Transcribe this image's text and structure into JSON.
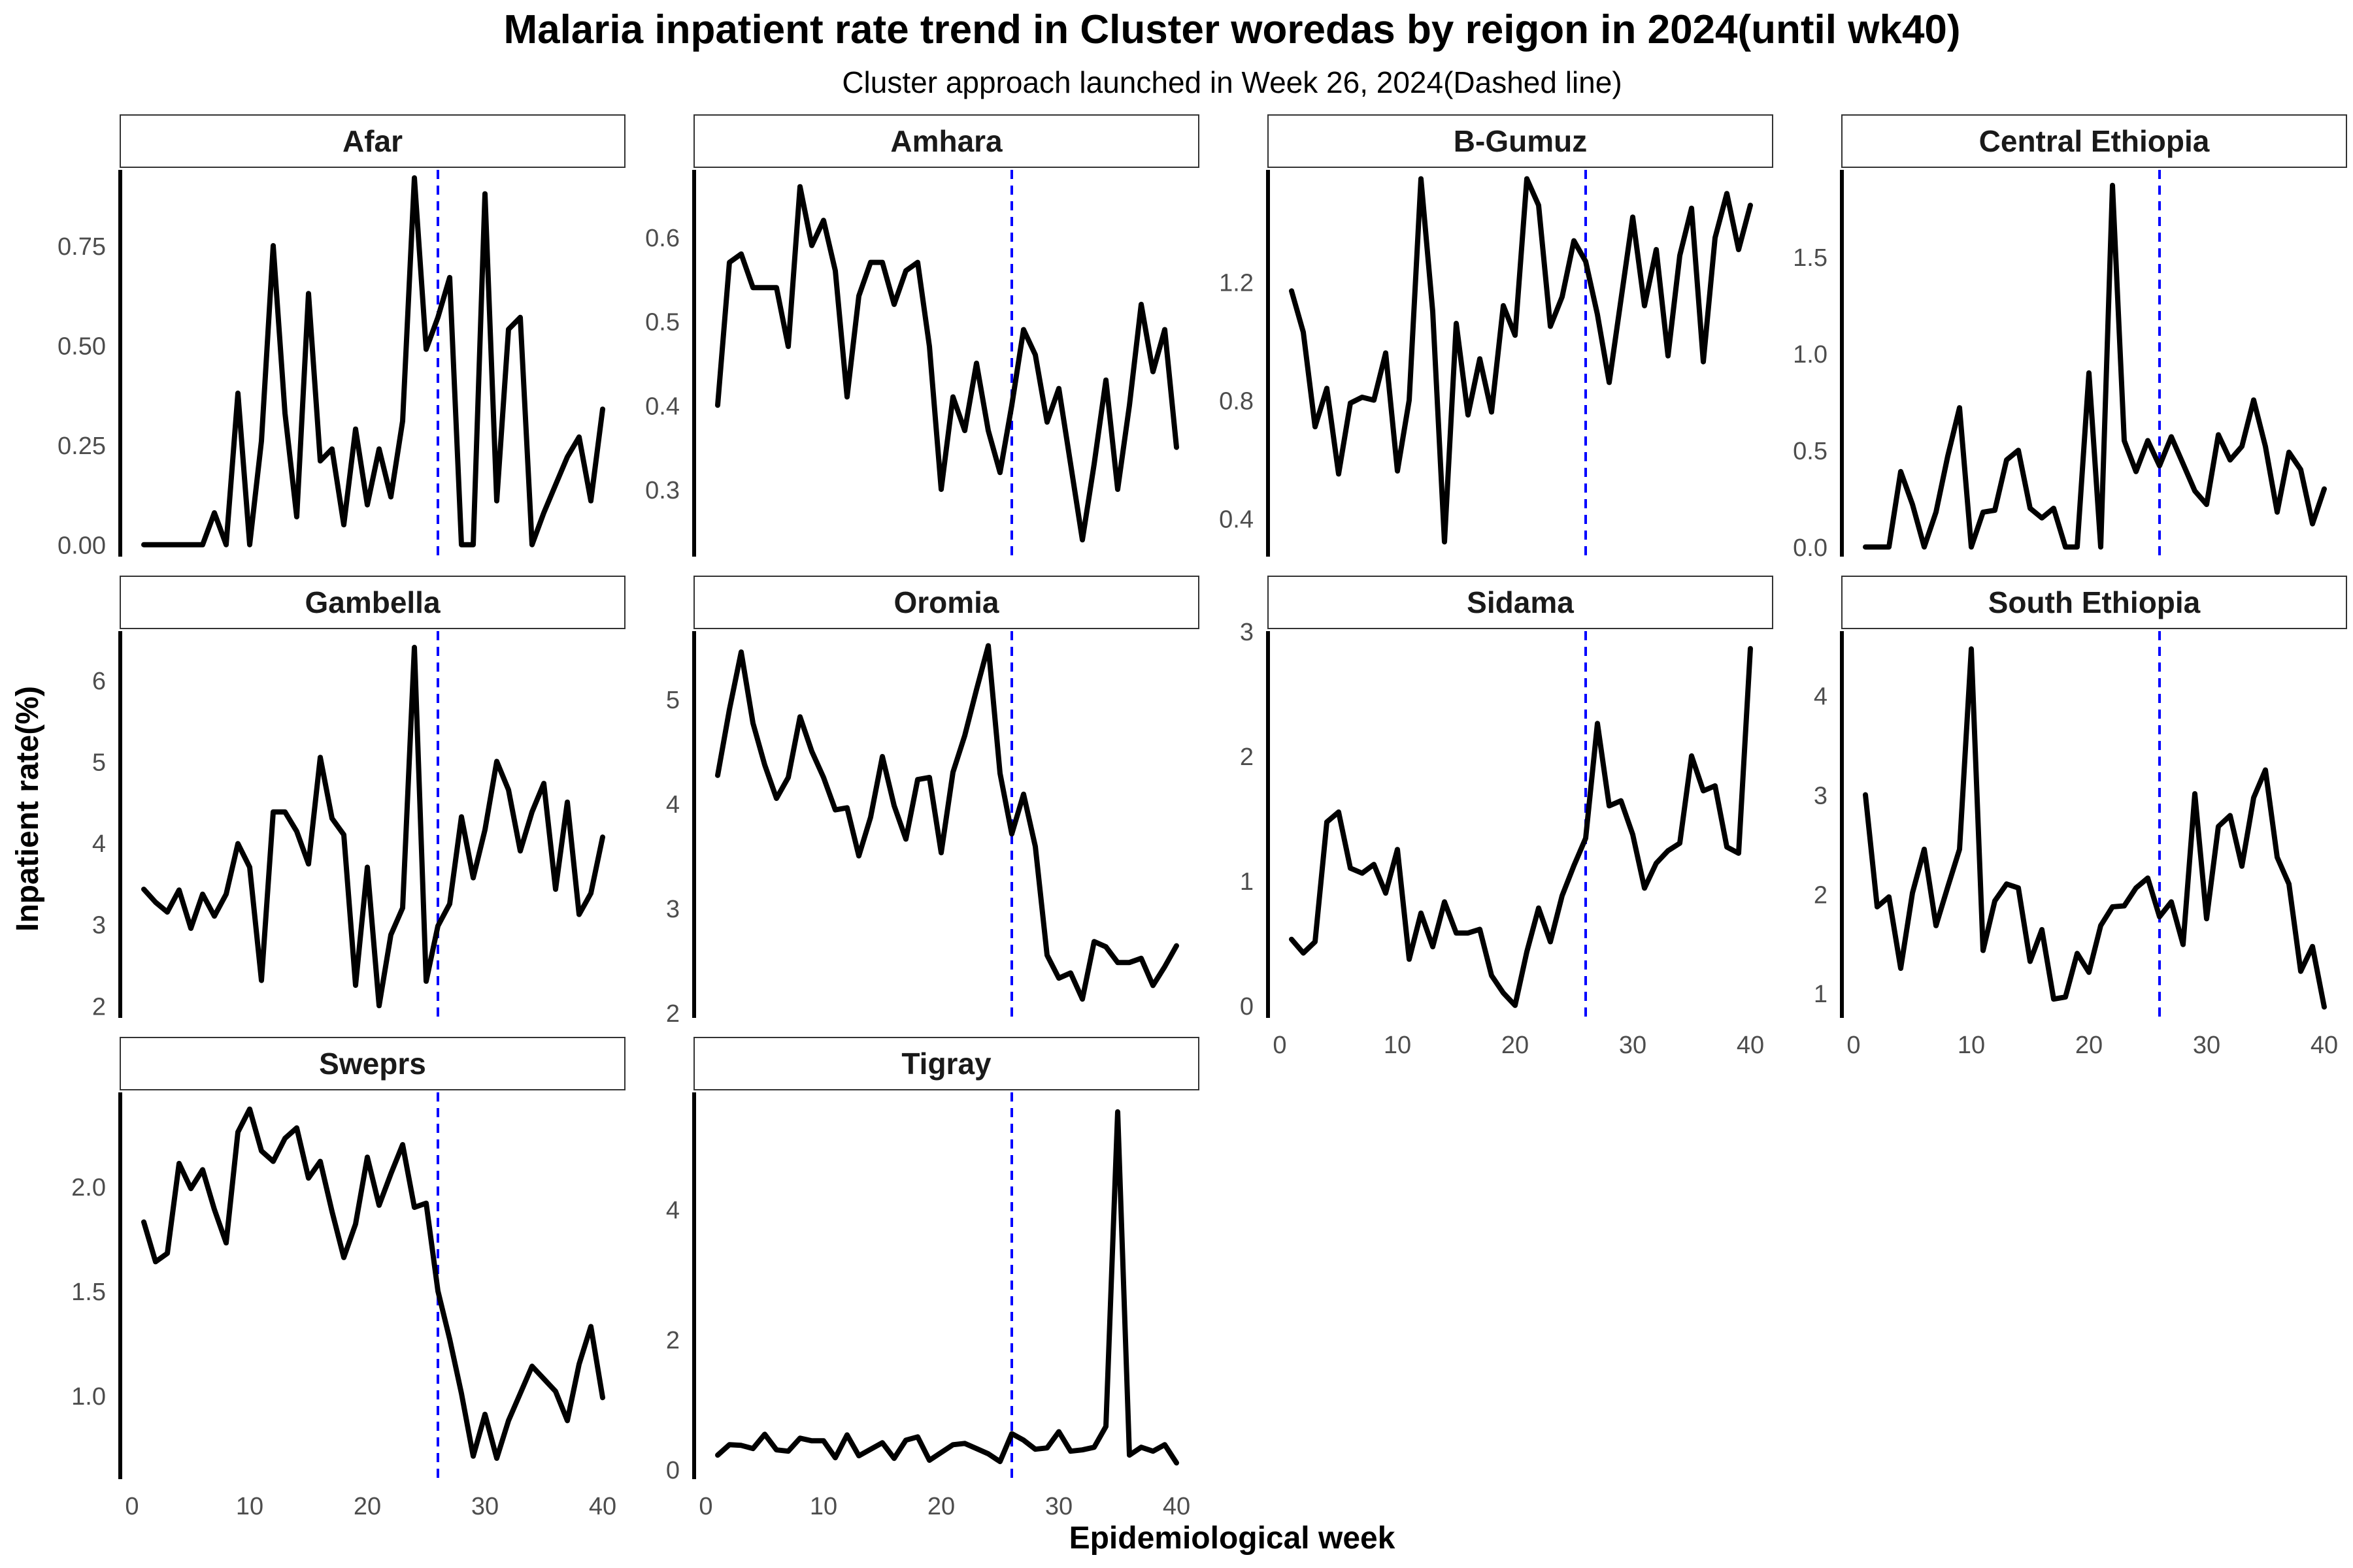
{
  "title": "Malaria inpatient rate trend in Cluster woredas by reigon in 2024(until wk40)",
  "subtitle": "Cluster approach launched in Week 26, 2024(Dashed line)",
  "xlabel": "Epidemiological week",
  "ylabel": "Inpatient rate(%)",
  "colors": {
    "line": "#000000",
    "marker_line": "#0000ff",
    "strip_fill": "#ffffff",
    "strip_border": "#333333",
    "tick_text": "#4d4d4d"
  },
  "chart_data": {
    "type": "line",
    "facet": "small-multiples",
    "reference_line": {
      "x": 26,
      "style": "dashed",
      "color": "#0000ff"
    },
    "xlim": [
      1,
      40
    ],
    "x_ticks": [
      0,
      10,
      20,
      30,
      40
    ],
    "panels": [
      {
        "name": "Afar",
        "ylim": [
          -0.03,
          0.94
        ],
        "y_ticks": [
          0.0,
          0.25,
          0.5,
          0.75
        ],
        "y_tick_labels": [
          "0.00",
          "0.25",
          "0.50",
          "0.75"
        ],
        "x": [
          1,
          2,
          3,
          4,
          5,
          6,
          7,
          8,
          9,
          10,
          11,
          12,
          13,
          14,
          15,
          16,
          17,
          18,
          19,
          20,
          21,
          22,
          23,
          24,
          25,
          26,
          27,
          28,
          29,
          30,
          31,
          32,
          33,
          34,
          35,
          36,
          37,
          38,
          39,
          40
        ],
        "y": [
          0.0,
          0.0,
          0.0,
          0.0,
          0.0,
          0.0,
          0.08,
          0.0,
          0.38,
          0.0,
          0.26,
          0.75,
          0.33,
          0.07,
          0.63,
          0.21,
          0.24,
          0.05,
          0.29,
          0.1,
          0.24,
          0.12,
          0.31,
          0.92,
          0.49,
          0.57,
          0.67,
          0.0,
          0.0,
          0.88,
          0.11,
          0.54,
          0.57,
          0.0,
          0.08,
          0.15,
          0.22,
          0.27,
          0.11,
          0.34
        ]
      },
      {
        "name": "Amhara",
        "ylim": [
          0.22,
          0.68
        ],
        "y_ticks": [
          0.3,
          0.4,
          0.5,
          0.6
        ],
        "y_tick_labels": [
          "0.3",
          "0.4",
          "0.5",
          "0.6"
        ],
        "x": [
          1,
          2,
          3,
          4,
          5,
          6,
          7,
          8,
          9,
          10,
          11,
          12,
          13,
          14,
          15,
          16,
          17,
          18,
          19,
          20,
          21,
          22,
          23,
          24,
          25,
          26,
          27,
          28,
          29,
          30,
          31,
          32,
          33,
          34,
          35,
          36,
          37,
          38,
          39,
          40
        ],
        "y": [
          0.4,
          0.57,
          0.58,
          0.54,
          0.54,
          0.54,
          0.47,
          0.66,
          0.59,
          0.62,
          0.56,
          0.41,
          0.53,
          0.57,
          0.57,
          0.52,
          0.56,
          0.57,
          0.47,
          0.3,
          0.41,
          0.37,
          0.45,
          0.37,
          0.32,
          0.4,
          0.49,
          0.46,
          0.38,
          0.42,
          0.33,
          0.24,
          0.33,
          0.43,
          0.3,
          0.4,
          0.52,
          0.44,
          0.49,
          0.35
        ]
      },
      {
        "name": "B-Gumuz",
        "ylim": [
          0.27,
          1.58
        ],
        "y_ticks": [
          0.4,
          0.8,
          1.2
        ],
        "y_tick_labels": [
          "0.4",
          "0.8",
          "1.2"
        ],
        "x": [
          1,
          2,
          3,
          4,
          5,
          6,
          7,
          8,
          9,
          10,
          11,
          12,
          13,
          14,
          15,
          16,
          17,
          18,
          19,
          20,
          21,
          22,
          23,
          24,
          25,
          26,
          27,
          28,
          29,
          30,
          31,
          32,
          33,
          34,
          35,
          36,
          37,
          38,
          39,
          40
        ],
        "y": [
          1.17,
          1.03,
          0.71,
          0.84,
          0.55,
          0.79,
          0.81,
          0.8,
          0.96,
          0.56,
          0.8,
          1.55,
          1.1,
          0.32,
          1.06,
          0.75,
          0.94,
          0.76,
          1.12,
          1.02,
          1.55,
          1.46,
          1.05,
          1.15,
          1.34,
          1.27,
          1.09,
          0.86,
          1.14,
          1.42,
          1.12,
          1.31,
          0.95,
          1.29,
          1.45,
          0.93,
          1.35,
          1.5,
          1.31,
          1.46
        ]
      },
      {
        "name": "Central Ethiopia",
        "ylim": [
          -0.05,
          1.95
        ],
        "y_ticks": [
          0.0,
          0.5,
          1.0,
          1.5
        ],
        "y_tick_labels": [
          "0.0",
          "0.5",
          "1.0",
          "1.5"
        ],
        "x": [
          1,
          2,
          3,
          4,
          5,
          6,
          7,
          8,
          9,
          10,
          11,
          12,
          13,
          14,
          15,
          16,
          17,
          18,
          19,
          20,
          21,
          22,
          23,
          24,
          25,
          26,
          27,
          28,
          29,
          30,
          31,
          32,
          33,
          34,
          35,
          36,
          37,
          38,
          39,
          40
        ],
        "y": [
          0.0,
          0.0,
          0.0,
          0.39,
          0.22,
          0.0,
          0.18,
          0.47,
          0.72,
          0.0,
          0.18,
          0.19,
          0.45,
          0.5,
          0.2,
          0.15,
          0.2,
          0.0,
          0.0,
          0.9,
          0.0,
          1.87,
          0.55,
          0.39,
          0.55,
          0.42,
          0.57,
          0.43,
          0.29,
          0.22,
          0.58,
          0.45,
          0.52,
          0.76,
          0.52,
          0.18,
          0.49,
          0.4,
          0.12,
          0.3
        ]
      },
      {
        "name": "Gambella",
        "ylim": [
          1.85,
          6.6
        ],
        "y_ticks": [
          2,
          3,
          4,
          5,
          6
        ],
        "y_tick_labels": [
          "2",
          "3",
          "4",
          "5",
          "6"
        ],
        "x": [
          1,
          2,
          3,
          4,
          5,
          6,
          7,
          8,
          9,
          10,
          11,
          12,
          13,
          14,
          15,
          16,
          17,
          18,
          19,
          20,
          21,
          22,
          23,
          24,
          25,
          26,
          27,
          28,
          29,
          30,
          31,
          32,
          33,
          34,
          35,
          36,
          37,
          38,
          39,
          40
        ],
        "y": [
          3.43,
          3.27,
          3.15,
          3.42,
          2.95,
          3.37,
          3.1,
          3.37,
          3.99,
          3.7,
          2.31,
          4.38,
          4.38,
          4.14,
          3.74,
          5.05,
          4.3,
          4.1,
          2.25,
          3.7,
          2.0,
          2.87,
          3.2,
          6.4,
          2.3,
          2.98,
          3.25,
          4.32,
          3.57,
          4.16,
          5.0,
          4.65,
          3.9,
          4.38,
          4.73,
          3.43,
          4.5,
          3.12,
          3.38,
          4.07
        ]
      },
      {
        "name": "Oromia",
        "ylim": [
          1.95,
          5.65
        ],
        "y_ticks": [
          2,
          3,
          4,
          5
        ],
        "y_tick_labels": [
          "2",
          "3",
          "4",
          "5"
        ],
        "x": [
          1,
          2,
          3,
          4,
          5,
          6,
          7,
          8,
          9,
          10,
          11,
          12,
          13,
          14,
          15,
          16,
          17,
          18,
          19,
          20,
          21,
          22,
          23,
          24,
          25,
          26,
          27,
          28,
          29,
          30,
          31,
          32,
          33,
          34,
          35,
          36,
          37,
          38,
          39,
          40
        ],
        "y": [
          4.27,
          4.9,
          5.45,
          4.77,
          4.37,
          4.05,
          4.25,
          4.83,
          4.5,
          4.25,
          3.94,
          3.96,
          3.5,
          3.87,
          4.45,
          3.98,
          3.66,
          4.23,
          4.25,
          3.53,
          4.3,
          4.65,
          5.09,
          5.51,
          4.29,
          3.71,
          4.09,
          3.59,
          2.55,
          2.33,
          2.38,
          2.13,
          2.68,
          2.63,
          2.48,
          2.48,
          2.52,
          2.26,
          2.44,
          2.64
        ]
      },
      {
        "name": "Sidama",
        "ylim": [
          -0.1,
          3.0
        ],
        "y_ticks": [
          0,
          1,
          2,
          3
        ],
        "y_tick_labels": [
          "0",
          "1",
          "2",
          "3"
        ],
        "x": [
          1,
          2,
          3,
          4,
          5,
          6,
          7,
          8,
          9,
          10,
          11,
          12,
          13,
          14,
          15,
          16,
          17,
          18,
          19,
          20,
          21,
          22,
          23,
          24,
          25,
          26,
          27,
          28,
          29,
          30,
          31,
          32,
          33,
          34,
          35,
          36,
          37,
          38,
          39,
          40
        ],
        "y": [
          0.53,
          0.42,
          0.51,
          1.47,
          1.55,
          1.1,
          1.06,
          1.13,
          0.9,
          1.25,
          0.37,
          0.74,
          0.47,
          0.83,
          0.58,
          0.58,
          0.61,
          0.24,
          0.1,
          0.0,
          0.43,
          0.78,
          0.51,
          0.88,
          1.12,
          1.34,
          2.26,
          1.6,
          1.64,
          1.37,
          0.94,
          1.14,
          1.24,
          1.3,
          2.0,
          1.72,
          1.76,
          1.27,
          1.22,
          2.86
        ]
      },
      {
        "name": "South Ethiopia",
        "ylim": [
          0.75,
          4.65
        ],
        "y_ticks": [
          1,
          2,
          3,
          4
        ],
        "y_tick_labels": [
          "1",
          "2",
          "3",
          "4"
        ],
        "x": [
          1,
          2,
          3,
          4,
          5,
          6,
          7,
          8,
          9,
          10,
          11,
          12,
          13,
          14,
          15,
          16,
          17,
          18,
          19,
          20,
          21,
          22,
          23,
          24,
          25,
          26,
          27,
          28,
          29,
          30,
          31,
          32,
          33,
          34,
          35,
          36,
          37,
          38,
          39,
          40
        ],
        "y": [
          3.0,
          1.87,
          1.97,
          1.25,
          2.01,
          2.45,
          1.68,
          2.07,
          2.45,
          4.47,
          1.43,
          1.93,
          2.1,
          2.06,
          1.32,
          1.64,
          0.94,
          0.96,
          1.4,
          1.21,
          1.68,
          1.87,
          1.88,
          2.06,
          2.16,
          1.77,
          1.92,
          1.49,
          3.01,
          1.75,
          2.68,
          2.79,
          2.28,
          2.97,
          3.25,
          2.37,
          2.1,
          1.22,
          1.47,
          0.86
        ]
      },
      {
        "name": "Sweprs",
        "ylim": [
          0.6,
          2.45
        ],
        "y_ticks": [
          1.0,
          1.5,
          2.0
        ],
        "y_tick_labels": [
          "1.0",
          "1.5",
          "2.0"
        ],
        "x": [
          1,
          2,
          3,
          4,
          5,
          6,
          7,
          8,
          9,
          10,
          11,
          12,
          13,
          14,
          15,
          16,
          17,
          18,
          19,
          20,
          21,
          22,
          23,
          24,
          25,
          26,
          27,
          28,
          29,
          30,
          31,
          32,
          33,
          34,
          35,
          36,
          37,
          38,
          39,
          40
        ],
        "y": [
          1.83,
          1.64,
          1.68,
          2.11,
          1.99,
          2.08,
          1.89,
          1.73,
          2.26,
          2.37,
          2.17,
          2.12,
          2.23,
          2.28,
          2.04,
          2.12,
          1.88,
          1.66,
          1.82,
          2.14,
          1.91,
          2.06,
          2.2,
          1.9,
          1.92,
          1.5,
          1.27,
          1.01,
          0.71,
          0.91,
          0.7,
          0.88,
          1.01,
          1.14,
          1.08,
          1.02,
          0.88,
          1.15,
          1.33,
          0.99
        ]
      },
      {
        "name": "Tigray",
        "ylim": [
          -0.15,
          5.8
        ],
        "y_ticks": [
          0,
          2,
          4
        ],
        "y_tick_labels": [
          "0",
          "2",
          "4"
        ],
        "x": [
          1,
          2,
          3,
          4,
          5,
          6,
          7,
          8,
          9,
          10,
          11,
          12,
          13,
          14,
          15,
          16,
          17,
          18,
          19,
          20,
          21,
          22,
          23,
          24,
          25,
          26,
          27,
          28,
          29,
          30,
          31,
          32,
          33,
          34,
          35,
          36,
          37,
          38,
          39,
          40
        ],
        "y": [
          0.22,
          0.38,
          0.37,
          0.32,
          0.54,
          0.3,
          0.28,
          0.48,
          0.44,
          0.44,
          0.18,
          0.53,
          0.21,
          0.31,
          0.41,
          0.17,
          0.45,
          0.5,
          0.14,
          0.26,
          0.38,
          0.4,
          0.32,
          0.24,
          0.12,
          0.55,
          0.45,
          0.31,
          0.33,
          0.58,
          0.28,
          0.3,
          0.34,
          0.66,
          5.5,
          0.22,
          0.34,
          0.28,
          0.38,
          0.1
        ]
      }
    ]
  }
}
